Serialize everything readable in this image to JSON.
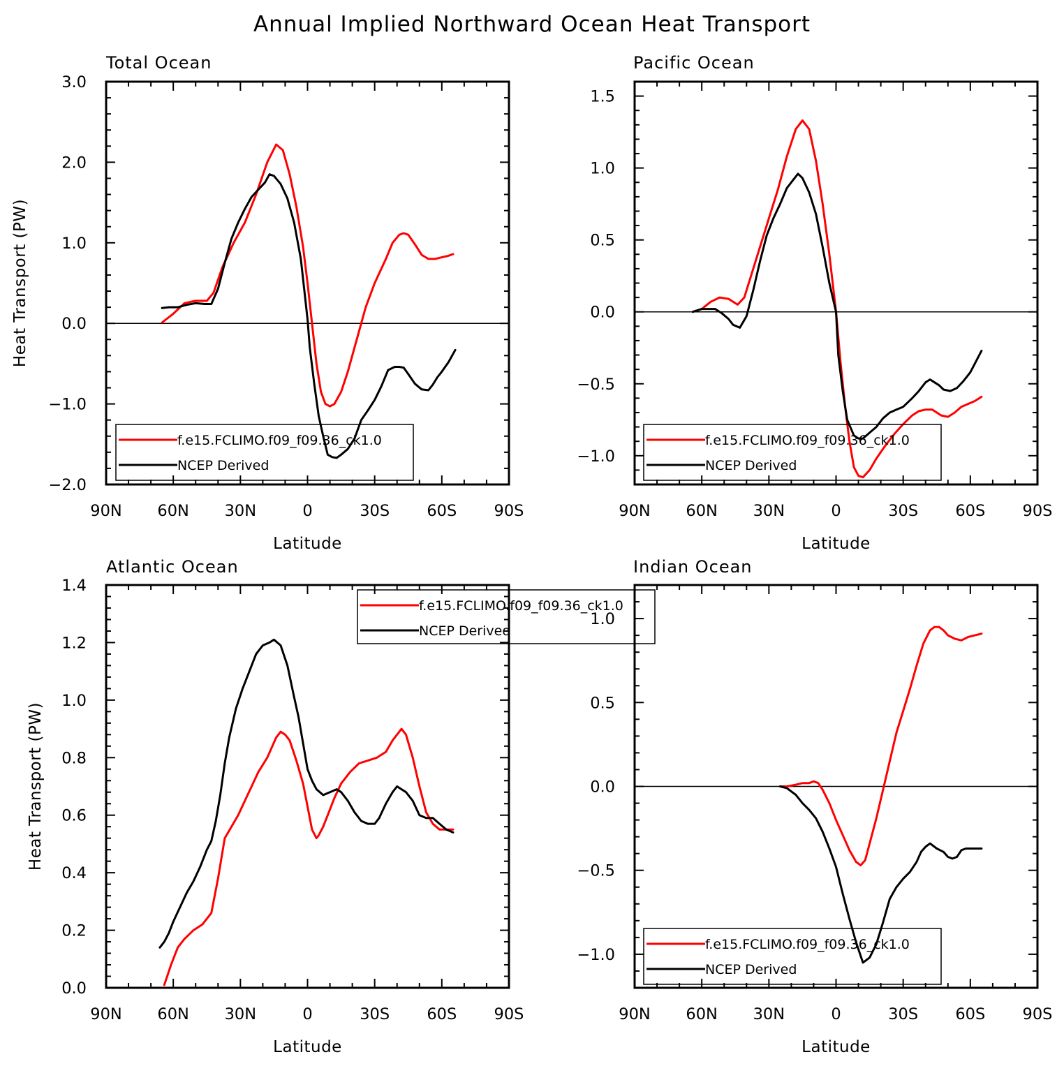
{
  "title": "Annual Implied Northward Ocean Heat Transport",
  "colors": {
    "model": "#ff0000",
    "obs": "#000000",
    "zero_line": "#000000"
  },
  "chart_data": [
    {
      "type": "line",
      "title": "Total Ocean",
      "xlabel": "Latitude",
      "ylabel": "Heat Transport (PW)",
      "xlim": [
        -90,
        90
      ],
      "ylim": [
        -2.0,
        3.0
      ],
      "x_ticks": [
        -90,
        -60,
        -30,
        0,
        30,
        60,
        90
      ],
      "x_tick_labels": [
        "90N",
        "60N",
        "30N",
        "0",
        "30S",
        "60S",
        "90S"
      ],
      "y_ticks": [
        -2,
        -1,
        0,
        1,
        2,
        3
      ],
      "y_tick_labels": [
        "−2.0",
        "−1.0",
        "0.0",
        "1.0",
        "2.0",
        "3.0"
      ],
      "legend_position": "bottom-left",
      "series": [
        {
          "name": "f.e15.FCLIMO.f09_f09.36_ck1.0",
          "color": "#ff0000",
          "x": [
            -65,
            -60,
            -55,
            -50,
            -45,
            -42,
            -38,
            -33,
            -28,
            -23,
            -18,
            -14,
            -11,
            -8,
            -5,
            -2,
            0,
            2,
            4,
            6,
            8,
            10,
            12,
            15,
            18,
            22,
            26,
            30,
            35,
            38,
            41,
            43,
            45,
            48,
            51,
            54,
            57,
            60,
            63,
            65
          ],
          "y": [
            0.01,
            0.12,
            0.25,
            0.28,
            0.28,
            0.38,
            0.7,
            1.0,
            1.25,
            1.6,
            2.0,
            2.22,
            2.15,
            1.85,
            1.45,
            0.95,
            0.5,
            0.0,
            -0.5,
            -0.85,
            -1.0,
            -1.03,
            -1.0,
            -0.85,
            -0.6,
            -0.2,
            0.2,
            0.5,
            0.8,
            1.0,
            1.1,
            1.12,
            1.1,
            0.98,
            0.85,
            0.8,
            0.8,
            0.82,
            0.84,
            0.86
          ]
        },
        {
          "name": "NCEP Derived",
          "color": "#000000",
          "x": [
            -65,
            -62,
            -58,
            -54,
            -50,
            -46,
            -43,
            -40,
            -37,
            -34,
            -31,
            -28,
            -25,
            -22,
            -19,
            -17,
            -15,
            -12,
            -9,
            -6,
            -3,
            0,
            1,
            3,
            5,
            7,
            9,
            11,
            13,
            15,
            18,
            21,
            24,
            27,
            30,
            33,
            36,
            39,
            41,
            43,
            45,
            48,
            51,
            54,
            56,
            58,
            60,
            63,
            66
          ],
          "y": [
            0.19,
            0.2,
            0.2,
            0.23,
            0.25,
            0.24,
            0.24,
            0.43,
            0.75,
            1.05,
            1.25,
            1.42,
            1.57,
            1.66,
            1.75,
            1.85,
            1.83,
            1.73,
            1.55,
            1.25,
            0.8,
            0.05,
            -0.3,
            -0.75,
            -1.15,
            -1.4,
            -1.63,
            -1.66,
            -1.67,
            -1.63,
            -1.56,
            -1.43,
            -1.2,
            -1.08,
            -0.95,
            -0.78,
            -0.58,
            -0.54,
            -0.54,
            -0.55,
            -0.63,
            -0.75,
            -0.82,
            -0.83,
            -0.76,
            -0.67,
            -0.6,
            -0.48,
            -0.33
          ]
        }
      ]
    },
    {
      "type": "line",
      "title": "Pacific Ocean",
      "xlabel": "Latitude",
      "ylabel": "",
      "xlim": [
        -90,
        90
      ],
      "ylim": [
        -1.2,
        1.6
      ],
      "x_ticks": [
        -90,
        -60,
        -30,
        0,
        30,
        60,
        90
      ],
      "x_tick_labels": [
        "90N",
        "60N",
        "30N",
        "0",
        "30S",
        "60S",
        "90S"
      ],
      "y_ticks": [
        -1.0,
        -0.5,
        0.0,
        0.5,
        1.0,
        1.5
      ],
      "y_tick_labels": [
        "−1.0",
        "−0.5",
        "0.0",
        "0.5",
        "1.0",
        "1.5"
      ],
      "legend_position": "bottom-left",
      "series": [
        {
          "name": "f.e15.FCLIMO.f09_f09.36_ck1.0",
          "color": "#ff0000",
          "x": [
            -64,
            -60,
            -56,
            -52,
            -48,
            -44,
            -41,
            -38,
            -34,
            -30,
            -26,
            -22,
            -18,
            -15,
            -12,
            -9,
            -6,
            -3,
            0,
            2,
            4,
            6,
            8,
            10,
            12,
            15,
            18,
            22,
            26,
            30,
            34,
            37,
            40,
            43,
            45,
            47,
            50,
            53,
            56,
            59,
            62,
            65
          ],
          "y": [
            0.0,
            0.02,
            0.07,
            0.1,
            0.09,
            0.05,
            0.1,
            0.25,
            0.45,
            0.65,
            0.85,
            1.08,
            1.27,
            1.33,
            1.27,
            1.05,
            0.75,
            0.4,
            0.0,
            -0.35,
            -0.65,
            -0.9,
            -1.08,
            -1.14,
            -1.15,
            -1.1,
            -1.02,
            -0.93,
            -0.85,
            -0.78,
            -0.72,
            -0.69,
            -0.68,
            -0.68,
            -0.7,
            -0.72,
            -0.73,
            -0.7,
            -0.66,
            -0.64,
            -0.62,
            -0.59
          ]
        },
        {
          "name": "NCEP Derived",
          "color": "#000000",
          "x": [
            -64,
            -60,
            -57,
            -54,
            -51,
            -48,
            -46,
            -43,
            -40,
            -37,
            -34,
            -31,
            -28,
            -25,
            -22,
            -19,
            -17,
            -15,
            -12,
            -9,
            -6,
            -3,
            0,
            1,
            3,
            5,
            8,
            10,
            12,
            15,
            18,
            21,
            24,
            27,
            30,
            34,
            37,
            40,
            42,
            44,
            46,
            48,
            51,
            54,
            57,
            60,
            63,
            65
          ],
          "y": [
            0.0,
            0.02,
            0.02,
            0.02,
            -0.01,
            -0.05,
            -0.09,
            -0.11,
            -0.03,
            0.15,
            0.35,
            0.53,
            0.65,
            0.75,
            0.86,
            0.92,
            0.96,
            0.93,
            0.83,
            0.68,
            0.45,
            0.2,
            0.0,
            -0.3,
            -0.55,
            -0.75,
            -0.86,
            -0.88,
            -0.88,
            -0.84,
            -0.8,
            -0.74,
            -0.7,
            -0.68,
            -0.66,
            -0.6,
            -0.55,
            -0.49,
            -0.47,
            -0.49,
            -0.51,
            -0.54,
            -0.55,
            -0.53,
            -0.48,
            -0.42,
            -0.33,
            -0.27
          ]
        }
      ]
    },
    {
      "type": "line",
      "title": "Atlantic Ocean",
      "xlabel": "Latitude",
      "ylabel": "Heat Transport (PW)",
      "xlim": [
        -90,
        90
      ],
      "ylim": [
        0.0,
        1.4
      ],
      "x_ticks": [
        -90,
        -60,
        -30,
        0,
        30,
        60,
        90
      ],
      "x_tick_labels": [
        "90N",
        "60N",
        "30N",
        "0",
        "30S",
        "60S",
        "90S"
      ],
      "y_ticks": [
        0.0,
        0.2,
        0.4,
        0.6,
        0.8,
        1.0,
        1.2,
        1.4
      ],
      "y_tick_labels": [
        "0.0",
        "0.2",
        "0.4",
        "0.6",
        "0.8",
        "1.0",
        "1.2",
        "1.4"
      ],
      "legend_position": "top-center",
      "series": [
        {
          "name": "f.e15.FCLIMO.f09_f09.36_ck1.0",
          "color": "#ff0000",
          "x": [
            -64,
            -61,
            -58,
            -55,
            -51,
            -47,
            -43,
            -40,
            -37,
            -34,
            -31,
            -28,
            -25,
            -22,
            -18,
            -14,
            -12,
            -10,
            -8,
            -5,
            -2,
            0,
            2,
            4,
            5,
            7,
            9,
            12,
            15,
            19,
            23,
            27,
            31,
            35,
            38,
            41,
            42,
            44,
            47,
            50,
            53,
            56,
            59,
            62,
            65
          ],
          "y": [
            0.01,
            0.08,
            0.14,
            0.17,
            0.2,
            0.22,
            0.26,
            0.38,
            0.52,
            0.56,
            0.6,
            0.65,
            0.7,
            0.75,
            0.8,
            0.87,
            0.89,
            0.88,
            0.86,
            0.79,
            0.71,
            0.63,
            0.55,
            0.52,
            0.53,
            0.56,
            0.6,
            0.66,
            0.71,
            0.75,
            0.78,
            0.79,
            0.8,
            0.82,
            0.86,
            0.89,
            0.9,
            0.88,
            0.8,
            0.7,
            0.61,
            0.57,
            0.55,
            0.55,
            0.55
          ]
        },
        {
          "name": "NCEP Derived",
          "color": "#000000",
          "x": [
            -66,
            -64,
            -62,
            -60,
            -57,
            -54,
            -51,
            -48,
            -45,
            -43,
            -41,
            -39,
            -37,
            -35,
            -32,
            -29,
            -26,
            -23,
            -20,
            -17,
            -15,
            -12,
            -9,
            -6,
            -4,
            -2,
            0,
            2,
            4,
            7,
            10,
            13,
            15,
            18,
            21,
            24,
            27,
            30,
            32,
            35,
            38,
            40,
            42,
            44,
            47,
            50,
            53,
            56,
            59,
            62,
            65
          ],
          "y": [
            0.14,
            0.16,
            0.19,
            0.23,
            0.28,
            0.33,
            0.37,
            0.42,
            0.48,
            0.51,
            0.58,
            0.67,
            0.78,
            0.87,
            0.97,
            1.04,
            1.1,
            1.16,
            1.19,
            1.2,
            1.21,
            1.19,
            1.12,
            1.01,
            0.94,
            0.85,
            0.76,
            0.72,
            0.69,
            0.67,
            0.68,
            0.69,
            0.68,
            0.65,
            0.61,
            0.58,
            0.57,
            0.57,
            0.59,
            0.64,
            0.68,
            0.7,
            0.69,
            0.68,
            0.65,
            0.6,
            0.59,
            0.59,
            0.57,
            0.55,
            0.54
          ]
        }
      ]
    },
    {
      "type": "line",
      "title": "Indian Ocean",
      "xlabel": "Latitude",
      "ylabel": "",
      "xlim": [
        -90,
        90
      ],
      "ylim": [
        -1.2,
        1.2
      ],
      "x_ticks": [
        -90,
        -60,
        -30,
        0,
        30,
        60,
        90
      ],
      "x_tick_labels": [
        "90N",
        "60N",
        "30N",
        "0",
        "30S",
        "60S",
        "90S"
      ],
      "y_ticks": [
        -1.0,
        -0.5,
        0.0,
        0.5,
        1.0
      ],
      "y_tick_labels": [
        "−1.0",
        "−0.5",
        "0.0",
        "0.5",
        "1.0"
      ],
      "legend_position": "bottom-left",
      "series": [
        {
          "name": "f.e15.FCLIMO.f09_f09.36_ck1.0",
          "color": "#ff0000",
          "x": [
            -25,
            -22,
            -18,
            -15,
            -12,
            -10,
            -8,
            -6,
            -3,
            0,
            3,
            6,
            9,
            11,
            13,
            15,
            18,
            21,
            24,
            27,
            30,
            33,
            36,
            39,
            42,
            44,
            46,
            48,
            50,
            53,
            56,
            59,
            62,
            65
          ],
          "y": [
            0.0,
            0.0,
            0.01,
            0.02,
            0.02,
            0.03,
            0.02,
            -0.02,
            -0.1,
            -0.2,
            -0.29,
            -0.38,
            -0.45,
            -0.47,
            -0.44,
            -0.34,
            -0.19,
            -0.02,
            0.15,
            0.32,
            0.45,
            0.58,
            0.72,
            0.85,
            0.93,
            0.95,
            0.95,
            0.93,
            0.9,
            0.88,
            0.87,
            0.89,
            0.9,
            0.91
          ]
        },
        {
          "name": "NCEP Derived",
          "color": "#000000",
          "x": [
            -25,
            -22,
            -18,
            -15,
            -12,
            -9,
            -6,
            -3,
            0,
            3,
            6,
            9,
            12,
            15,
            18,
            21,
            24,
            27,
            30,
            33,
            36,
            38,
            40,
            42,
            45,
            48,
            50,
            52,
            54,
            56,
            58,
            60,
            63,
            65
          ],
          "y": [
            0.0,
            -0.01,
            -0.05,
            -0.1,
            -0.14,
            -0.19,
            -0.27,
            -0.37,
            -0.48,
            -0.64,
            -0.79,
            -0.93,
            -1.05,
            -1.02,
            -0.94,
            -0.81,
            -0.67,
            -0.6,
            -0.55,
            -0.51,
            -0.45,
            -0.39,
            -0.36,
            -0.34,
            -0.37,
            -0.39,
            -0.42,
            -0.43,
            -0.42,
            -0.38,
            -0.37,
            -0.37,
            -0.37,
            -0.37
          ]
        }
      ]
    }
  ]
}
